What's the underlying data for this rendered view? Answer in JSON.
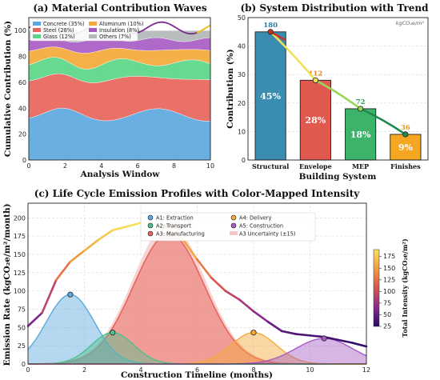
{
  "chart_data": [
    {
      "type": "area",
      "title": "(a) Material Contribution Waves",
      "xlabel": "Analysis Window",
      "ylabel": "Cumulative Contribution (%)",
      "xlim": [
        0,
        10
      ],
      "ylim": [
        0,
        110
      ],
      "xticks": [
        0,
        2,
        4,
        6,
        8,
        10
      ],
      "yticks": [
        0,
        20,
        40,
        60,
        80,
        100
      ],
      "grid": true,
      "legend_position": "top-left",
      "series": [
        {
          "name": "Concrete (35%)",
          "color": "#5da8e0",
          "mean": 35,
          "amp": 5,
          "freq": 1.1,
          "phase": 0.2
        },
        {
          "name": "Steel (28%)",
          "color": "#e8655a",
          "mean": 28,
          "amp": 4,
          "freq": 1.3,
          "phase": 1.4
        },
        {
          "name": "Glass (12%)",
          "color": "#5bd688",
          "mean": 12,
          "amp": 3,
          "freq": 1.5,
          "phase": 0.6
        },
        {
          "name": "Aluminum (10%)",
          "color": "#f5a93a",
          "mean": 10,
          "amp": 2,
          "freq": 1.7,
          "phase": 2.0
        },
        {
          "name": "Insulation (8%)",
          "color": "#a75cc4",
          "mean": 8,
          "amp": 2,
          "freq": 1.9,
          "phase": 1.0
        },
        {
          "name": "Others (7%)",
          "color": "#b2b7b8",
          "mean": 7,
          "amp": 1.5,
          "freq": 2.1,
          "phase": 2.5
        }
      ],
      "overlay_wave": {
        "color": "#7b2d8e",
        "highlight_color": "#f5c518",
        "center": 102,
        "amp": 4.5,
        "freq": 1.6
      }
    },
    {
      "type": "bar",
      "title": "(b) System Distribution with Trend",
      "xlabel": "Building System",
      "ylabel": "Contribution (%)",
      "unit_label": "kgCO₂e/m²",
      "ylim": [
        0,
        50
      ],
      "yticks": [
        0,
        10,
        20,
        30,
        40,
        50
      ],
      "grid": true,
      "categories": [
        "Structural",
        "Envelope",
        "MEP",
        "Finishes"
      ],
      "values": [
        45,
        28,
        18,
        9
      ],
      "value_labels": [
        "45%",
        "28%",
        "18%",
        "9%"
      ],
      "intensities": [
        "180",
        "112",
        "72",
        "36"
      ],
      "colors": [
        "#3a8db0",
        "#e0584e",
        "#3bb36b",
        "#f5a623"
      ],
      "intensity_colors": [
        "#2a7aa0",
        "#e67e22",
        "#27a35a",
        "#e69a1c"
      ],
      "trend_colors": [
        "#c0392b",
        "#f1e05a",
        "#9bd45a",
        "#1f8a4c"
      ]
    },
    {
      "type": "area",
      "title": "(c) Life Cycle Emission Profiles with Color-Mapped Intensity",
      "xlabel": "Construction Timeline (months)",
      "ylabel": "Emission Rate (kgCO₂e/m²/month)",
      "colorbar_label": "Total Intensity (kgCO₂e/m²)",
      "colorbar_ticks": [
        25,
        50,
        75,
        100,
        125,
        150,
        175
      ],
      "colorbar_range": [
        25,
        190
      ],
      "xlim": [
        0,
        12
      ],
      "ylim": [
        0,
        220
      ],
      "xticks": [
        0,
        2,
        4,
        6,
        8,
        10,
        12
      ],
      "yticks": [
        0,
        25,
        50,
        75,
        100,
        125,
        150,
        175,
        200
      ],
      "grid": true,
      "legend_position": "top-center",
      "series": [
        {
          "name": "A1: Extraction",
          "color": "#5aa9dd",
          "peak_x": 1.5,
          "peak_y": 95,
          "width": 0.85
        },
        {
          "name": "A2: Transport",
          "color": "#4fc08d",
          "peak_x": 3.0,
          "peak_y": 43,
          "width": 0.75
        },
        {
          "name": "A3: Manufacturing",
          "color": "#e8655a",
          "peak_x": 5.0,
          "peak_y": 178,
          "width": 1.25
        },
        {
          "name": "A4: Delivery",
          "color": "#f5a93a",
          "peak_x": 8.0,
          "peak_y": 43,
          "width": 0.8
        },
        {
          "name": "A5: Construction",
          "color": "#a75cc4",
          "peak_x": 10.5,
          "peak_y": 35,
          "width": 1.0
        }
      ],
      "uncertainty": {
        "name": "A3 Uncertainty (±15)",
        "color": "#f5c6c6",
        "delta": 15
      },
      "total_curve": [
        [
          0,
          52
        ],
        [
          0.5,
          70
        ],
        [
          1,
          115
        ],
        [
          1.5,
          140
        ],
        [
          2,
          155
        ],
        [
          2.5,
          170
        ],
        [
          3,
          183
        ],
        [
          3.5,
          188
        ],
        [
          4,
          193
        ],
        [
          4.5,
          192
        ],
        [
          5,
          187
        ],
        [
          5.5,
          170
        ],
        [
          6,
          143
        ],
        [
          6.5,
          118
        ],
        [
          7,
          100
        ],
        [
          7.5,
          88
        ],
        [
          8,
          72
        ],
        [
          8.5,
          58
        ],
        [
          9,
          45
        ],
        [
          9.5,
          41
        ],
        [
          10,
          39
        ],
        [
          10.5,
          37
        ],
        [
          11,
          33
        ],
        [
          11.5,
          29
        ],
        [
          12,
          24
        ]
      ]
    }
  ]
}
